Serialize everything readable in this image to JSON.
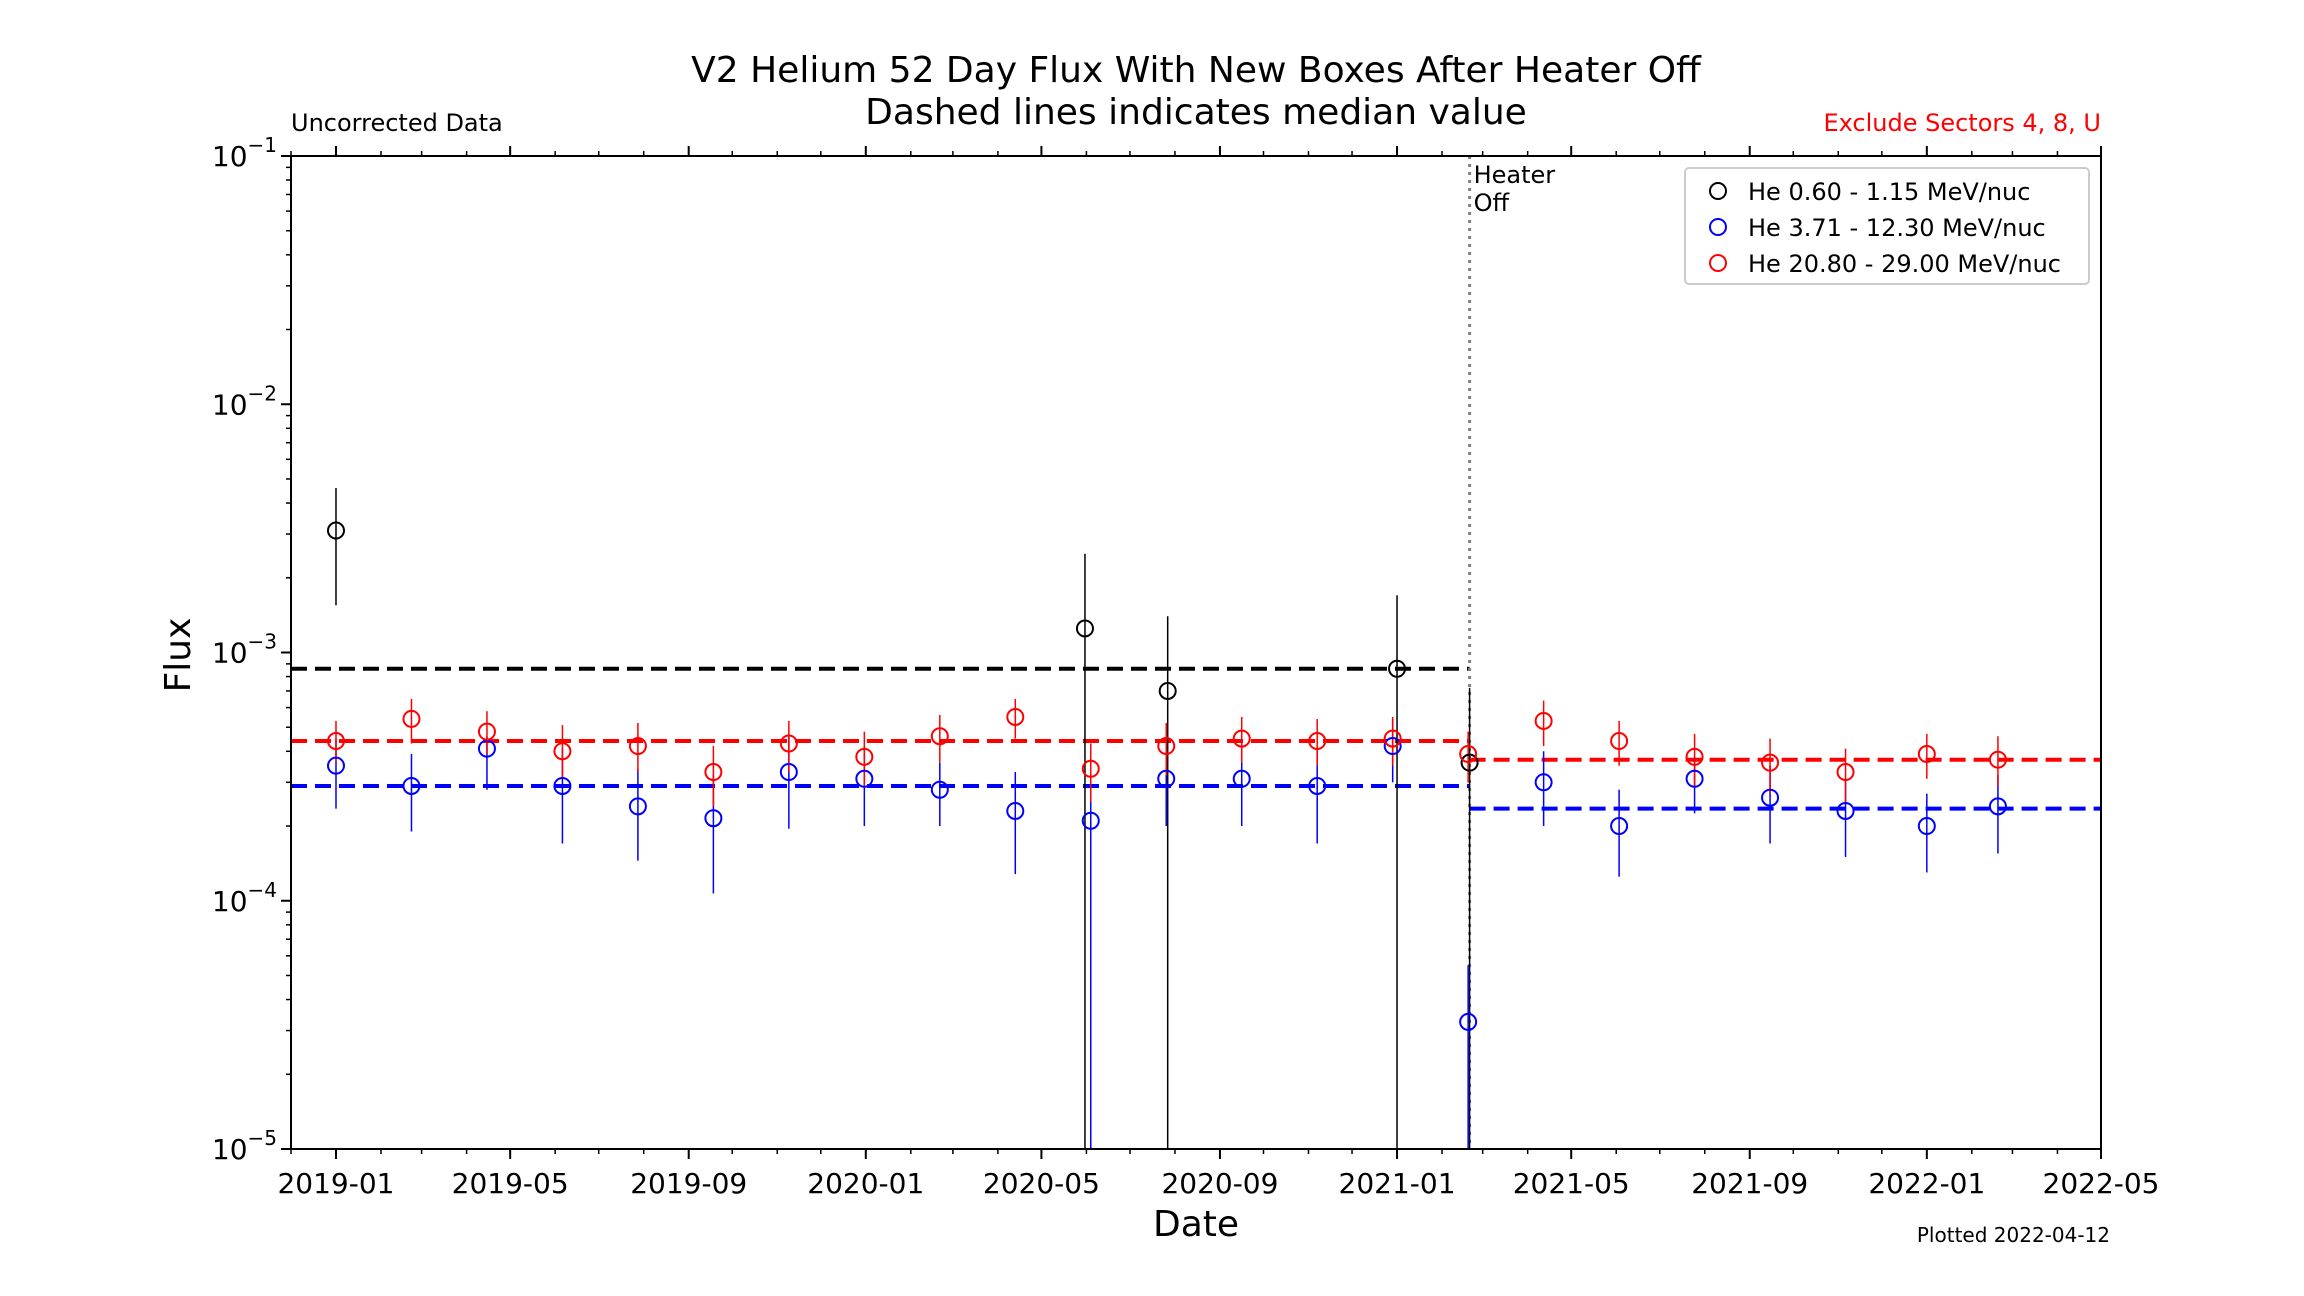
{
  "chart_data": {
    "type": "scatter",
    "title_line1": "V2 Helium 52 Day Flux With New Boxes After Heater Off",
    "title_line2": "Dashed lines indicates median value",
    "left_note": "Uncorrected Data",
    "right_note": "Exclude Sectors 4, 8, U",
    "right_note_color": "#ff0000",
    "plotted_note": "Plotted 2022-04-12",
    "xlabel": "Date",
    "ylabel": "Flux",
    "y_scale": "log",
    "ylim": [
      1e-05,
      0.1
    ],
    "y_ticks": [
      {
        "value": 0.1,
        "base": "10",
        "exp": "−1"
      },
      {
        "value": 0.01,
        "base": "10",
        "exp": "−2"
      },
      {
        "value": 0.001,
        "base": "10",
        "exp": "−3"
      },
      {
        "value": 0.0001,
        "base": "10",
        "exp": "−4"
      },
      {
        "value": 1e-05,
        "base": "10",
        "exp": "−5"
      }
    ],
    "xlim": [
      "2018-12-01",
      "2022-05-01"
    ],
    "x_ticks": [
      "2019-01",
      "2019-05",
      "2019-09",
      "2020-01",
      "2020-05",
      "2020-09",
      "2021-01",
      "2021-05",
      "2021-09",
      "2022-01",
      "2022-05"
    ],
    "heater_off": {
      "date": "2021-02-20",
      "label_line1": "Heater",
      "label_line2": "Off"
    },
    "legend_position": "upper right",
    "series": [
      {
        "name": "He 0.60 - 1.15 MeV/nuc",
        "color": "#000000",
        "points": [
          {
            "date": "2019-01-01",
            "y": 0.0031,
            "lo": 0.00155,
            "hi": 0.0046
          },
          {
            "date": "2020-05-31",
            "y": 0.00125,
            "lo": 1e-05,
            "hi": 0.0025
          },
          {
            "date": "2020-07-27",
            "y": 0.0007,
            "lo": 1e-05,
            "hi": 0.0014
          },
          {
            "date": "2021-01-01",
            "y": 0.00086,
            "lo": 1e-05,
            "hi": 0.0017
          },
          {
            "date": "2021-02-20",
            "y": 0.00036,
            "lo": 1e-05,
            "hi": 0.00072
          }
        ],
        "medians": [
          {
            "start": "2018-12-01",
            "end": "2021-02-20",
            "value": 0.00086
          }
        ]
      },
      {
        "name": "He 3.71 - 12.30 MeV/nuc",
        "color": "#0000ff",
        "points": [
          {
            "date": "2019-01-01",
            "y": 0.00035,
            "lo": 0.000235,
            "hi": 0.00045
          },
          {
            "date": "2019-02-22",
            "y": 0.00029,
            "lo": 0.00019,
            "hi": 0.00039
          },
          {
            "date": "2019-04-15",
            "y": 0.00041,
            "lo": 0.00028,
            "hi": 0.00046
          },
          {
            "date": "2019-06-06",
            "y": 0.00029,
            "lo": 0.00017,
            "hi": 0.00041
          },
          {
            "date": "2019-07-28",
            "y": 0.00024,
            "lo": 0.000145,
            "hi": 0.00034
          },
          {
            "date": "2019-09-18",
            "y": 0.000215,
            "lo": 0.000107,
            "hi": 0.00032
          },
          {
            "date": "2019-11-09",
            "y": 0.00033,
            "lo": 0.000195,
            "hi": 0.00046
          },
          {
            "date": "2019-12-31",
            "y": 0.00031,
            "lo": 0.0002,
            "hi": 0.00042
          },
          {
            "date": "2020-02-21",
            "y": 0.00028,
            "lo": 0.0002,
            "hi": 0.00036
          },
          {
            "date": "2020-04-13",
            "y": 0.00023,
            "lo": 0.000128,
            "hi": 0.00033
          },
          {
            "date": "2020-06-04",
            "y": 0.00021,
            "lo": 1e-05,
            "hi": 0.00031
          },
          {
            "date": "2020-07-26",
            "y": 0.00031,
            "lo": 0.0002,
            "hi": 0.00042
          },
          {
            "date": "2020-09-16",
            "y": 0.00031,
            "lo": 0.0002,
            "hi": 0.00042
          },
          {
            "date": "2020-11-07",
            "y": 0.00029,
            "lo": 0.00017,
            "hi": 0.00041
          },
          {
            "date": "2020-12-29",
            "y": 0.00042,
            "lo": 0.0003,
            "hi": 0.00054
          },
          {
            "date": "2021-02-19",
            "y": 3.25e-05,
            "lo": 1e-05,
            "hi": 5.5e-05
          },
          {
            "date": "2021-04-12",
            "y": 0.0003,
            "lo": 0.0002,
            "hi": 0.0004
          },
          {
            "date": "2021-06-03",
            "y": 0.0002,
            "lo": 0.000125,
            "hi": 0.00028
          },
          {
            "date": "2021-07-25",
            "y": 0.00031,
            "lo": 0.000225,
            "hi": 0.00038
          },
          {
            "date": "2021-09-15",
            "y": 0.00026,
            "lo": 0.00017,
            "hi": 0.00035
          },
          {
            "date": "2021-11-06",
            "y": 0.00023,
            "lo": 0.00015,
            "hi": 0.00031
          },
          {
            "date": "2022-01-01",
            "y": 0.0002,
            "lo": 0.00013,
            "hi": 0.00027
          },
          {
            "date": "2022-02-19",
            "y": 0.00024,
            "lo": 0.000155,
            "hi": 0.00032
          }
        ],
        "medians": [
          {
            "start": "2018-12-01",
            "end": "2021-02-20",
            "value": 0.00029
          },
          {
            "start": "2021-02-20",
            "end": "2022-05-01",
            "value": 0.000235
          }
        ]
      },
      {
        "name": "He 20.80 - 29.00 MeV/nuc",
        "color": "#ff0000",
        "points": [
          {
            "date": "2019-01-01",
            "y": 0.00044,
            "lo": 0.00036,
            "hi": 0.00053
          },
          {
            "date": "2019-02-22",
            "y": 0.00054,
            "lo": 0.00043,
            "hi": 0.00065
          },
          {
            "date": "2019-04-15",
            "y": 0.00048,
            "lo": 0.00039,
            "hi": 0.00058
          },
          {
            "date": "2019-06-06",
            "y": 0.0004,
            "lo": 0.00031,
            "hi": 0.00051
          },
          {
            "date": "2019-07-28",
            "y": 0.00042,
            "lo": 0.00033,
            "hi": 0.00052
          },
          {
            "date": "2019-09-18",
            "y": 0.00033,
            "lo": 0.00024,
            "hi": 0.00042
          },
          {
            "date": "2019-11-09",
            "y": 0.00043,
            "lo": 0.00033,
            "hi": 0.00053
          },
          {
            "date": "2019-12-31",
            "y": 0.00038,
            "lo": 0.00029,
            "hi": 0.00048
          },
          {
            "date": "2020-02-21",
            "y": 0.00046,
            "lo": 0.00036,
            "hi": 0.00056
          },
          {
            "date": "2020-04-13",
            "y": 0.00055,
            "lo": 0.00045,
            "hi": 0.00065
          },
          {
            "date": "2020-06-04",
            "y": 0.00034,
            "lo": 0.00025,
            "hi": 0.00043
          },
          {
            "date": "2020-07-26",
            "y": 0.00042,
            "lo": 0.00032,
            "hi": 0.00052
          },
          {
            "date": "2020-09-16",
            "y": 0.00045,
            "lo": 0.00036,
            "hi": 0.00055
          },
          {
            "date": "2020-11-07",
            "y": 0.00044,
            "lo": 0.00035,
            "hi": 0.00054
          },
          {
            "date": "2020-12-29",
            "y": 0.00045,
            "lo": 0.00035,
            "hi": 0.00055
          },
          {
            "date": "2021-02-19",
            "y": 0.00039,
            "lo": 0.0003,
            "hi": 0.00048
          },
          {
            "date": "2021-04-12",
            "y": 0.00053,
            "lo": 0.00042,
            "hi": 0.00064
          },
          {
            "date": "2021-06-03",
            "y": 0.00044,
            "lo": 0.00035,
            "hi": 0.00053
          },
          {
            "date": "2021-07-25",
            "y": 0.00038,
            "lo": 0.00029,
            "hi": 0.00047
          },
          {
            "date": "2021-09-15",
            "y": 0.00036,
            "lo": 0.00027,
            "hi": 0.00045
          },
          {
            "date": "2021-11-06",
            "y": 0.00033,
            "lo": 0.00025,
            "hi": 0.00041
          },
          {
            "date": "2022-01-01",
            "y": 0.00039,
            "lo": 0.00031,
            "hi": 0.00047
          },
          {
            "date": "2022-02-19",
            "y": 0.00037,
            "lo": 0.00029,
            "hi": 0.00046
          }
        ],
        "medians": [
          {
            "start": "2018-12-01",
            "end": "2021-02-20",
            "value": 0.00044
          },
          {
            "start": "2021-02-20",
            "end": "2022-05-01",
            "value": 0.00037
          }
        ]
      }
    ]
  }
}
